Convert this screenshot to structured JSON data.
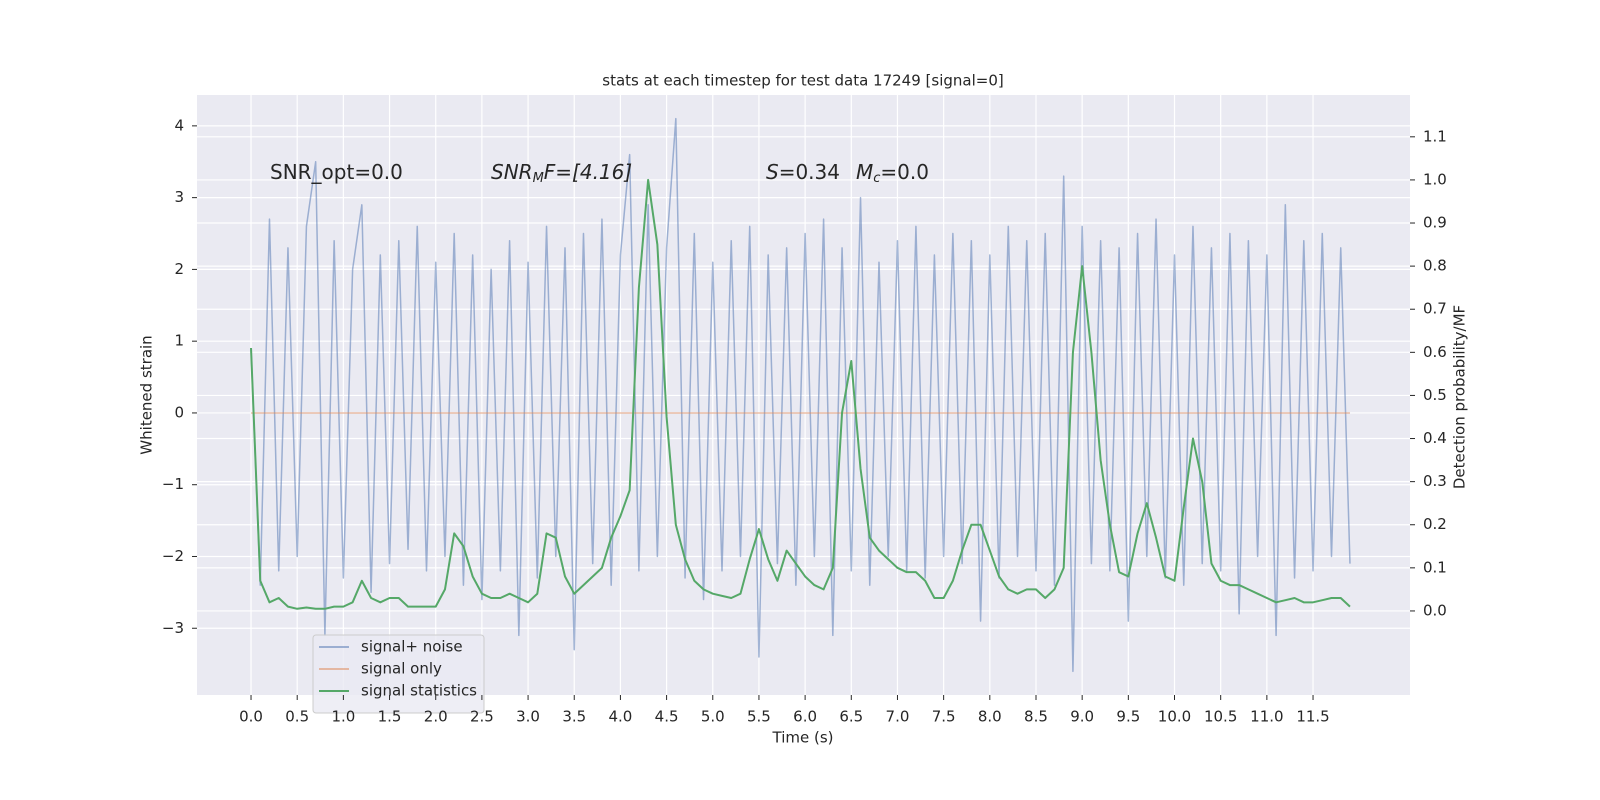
{
  "chart_data": {
    "type": "line",
    "title": "stats at each timestep for test data 17249 [signal=0]",
    "xlabel": "Time (s)",
    "ylabel": "Whitened strain",
    "y2label": "Detection probability/MF",
    "annotations": [
      {
        "parts": [
          "SNR_opt=0.0"
        ]
      },
      {
        "parts": [
          "SNR",
          "M",
          "F=[4.16]"
        ]
      },
      {
        "parts": [
          "S",
          "=0.34",
          "M",
          "c",
          "=0.0"
        ]
      }
    ],
    "xlim": [
      -0.585,
      12.55
    ],
    "ylim": [
      -3.93,
      4.43
    ],
    "y2lim": [
      -0.195,
      1.197
    ],
    "xticks": [
      {
        "value": 0,
        "label": "0.0"
      },
      {
        "value": 0.5,
        "label": "0.5"
      },
      {
        "value": 1,
        "label": "1.0"
      },
      {
        "value": 1.5,
        "label": "1.5"
      },
      {
        "value": 2,
        "label": "2.0"
      },
      {
        "value": 2.5,
        "label": "2.5"
      },
      {
        "value": 3,
        "label": "3.0"
      },
      {
        "value": 3.5,
        "label": "3.5"
      },
      {
        "value": 4,
        "label": "4.0"
      },
      {
        "value": 4.5,
        "label": "4.5"
      },
      {
        "value": 5,
        "label": "5.0"
      },
      {
        "value": 5.5,
        "label": "5.5"
      },
      {
        "value": 6,
        "label": "6.0"
      },
      {
        "value": 6.5,
        "label": "6.5"
      },
      {
        "value": 7,
        "label": "7.0"
      },
      {
        "value": 7.5,
        "label": "7.5"
      },
      {
        "value": 8,
        "label": "8.0"
      },
      {
        "value": 8.5,
        "label": "8.5"
      },
      {
        "value": 9,
        "label": "9.0"
      },
      {
        "value": 9.5,
        "label": "9.5"
      },
      {
        "value": 10,
        "label": "10.0"
      },
      {
        "value": 10.5,
        "label": "10.5"
      },
      {
        "value": 11,
        "label": "11.0"
      },
      {
        "value": 11.5,
        "label": "11.5"
      }
    ],
    "yticks": [
      {
        "value": -3,
        "label": "−3"
      },
      {
        "value": -2,
        "label": "−2"
      },
      {
        "value": -1,
        "label": "−1"
      },
      0,
      1,
      2,
      3,
      4
    ],
    "y2ticks": [
      {
        "value": 0,
        "label": "0.0"
      },
      {
        "value": 0.1,
        "label": "0.1"
      },
      {
        "value": 0.2,
        "label": "0.2"
      },
      {
        "value": 0.3,
        "label": "0.3"
      },
      {
        "value": 0.4,
        "label": "0.4"
      },
      {
        "value": 0.5,
        "label": "0.5"
      },
      {
        "value": 0.6,
        "label": "0.6"
      },
      {
        "value": 0.7,
        "label": "0.7"
      },
      {
        "value": 0.8,
        "label": "0.8"
      },
      {
        "value": 0.9,
        "label": "0.9"
      },
      {
        "value": 1,
        "label": "1.0"
      },
      {
        "value": 1.1,
        "label": "1.1"
      }
    ],
    "grid": true,
    "legend": "lower left",
    "x": [
      0,
      0.1,
      0.2,
      0.3,
      0.4,
      0.5,
      0.6,
      0.7,
      0.8,
      0.9,
      1,
      1.1,
      1.2,
      1.3,
      1.4,
      1.5,
      1.6,
      1.7,
      1.8,
      1.9,
      2,
      2.1,
      2.2,
      2.3,
      2.4,
      2.5,
      2.6,
      2.7,
      2.8,
      2.9,
      3,
      3.1,
      3.2,
      3.3,
      3.4,
      3.5,
      3.6,
      3.7,
      3.8,
      3.9,
      4,
      4.1,
      4.2,
      4.3,
      4.4,
      4.5,
      4.6,
      4.7,
      4.8,
      4.9,
      5,
      5.1,
      5.2,
      5.3,
      5.4,
      5.5,
      5.6,
      5.7,
      5.8,
      5.9,
      6,
      6.1,
      6.2,
      6.3,
      6.4,
      6.5,
      6.6,
      6.7,
      6.8,
      6.9,
      7,
      7.1,
      7.2,
      7.3,
      7.4,
      7.5,
      7.6,
      7.7,
      7.8,
      7.9,
      8,
      8.1,
      8.2,
      8.3,
      8.4,
      8.5,
      8.6,
      8.7,
      8.8,
      8.9,
      9,
      9.1,
      9.2,
      9.3,
      9.4,
      9.5,
      9.6,
      9.7,
      9.8,
      9.9,
      10,
      10.1,
      10.2,
      10.3,
      10.4,
      10.5,
      10.6,
      10.7,
      10.8,
      10.9,
      11,
      11.1,
      11.2,
      11.3,
      11.4,
      11.5,
      11.6,
      11.7,
      11.8,
      11.9
    ],
    "series": [
      {
        "name": "signal+ noise",
        "color": "#4c72b0",
        "opacity": 0.5,
        "values": [
          0.9,
          -2.4,
          2.7,
          -2.2,
          2.3,
          -2.0,
          2.6,
          3.5,
          -3.1,
          2.4,
          -2.3,
          2.0,
          2.9,
          -2.5,
          2.2,
          -2.1,
          2.4,
          -1.9,
          2.6,
          -2.2,
          2.1,
          -2.0,
          2.5,
          -2.4,
          2.2,
          -2.6,
          2.0,
          -2.2,
          2.4,
          -3.1,
          2.1,
          -2.3,
          2.6,
          -2.0,
          2.3,
          -3.3,
          2.5,
          -2.1,
          2.7,
          -2.4,
          2.2,
          3.6,
          -2.2,
          2.9,
          -2.0,
          2.3,
          4.1,
          -2.3,
          2.5,
          -2.6,
          2.1,
          -2.2,
          2.4,
          -2.0,
          2.6,
          -3.4,
          2.2,
          -2.1,
          2.3,
          -2.4,
          2.5,
          -2.0,
          2.7,
          -3.1,
          2.3,
          -2.2,
          3.0,
          -2.4,
          2.1,
          -2.0,
          2.4,
          -2.2,
          2.6,
          -2.3,
          2.2,
          -2.0,
          2.5,
          -2.1,
          2.4,
          -2.9,
          2.2,
          -2.3,
          2.6,
          -2.0,
          2.4,
          -2.2,
          2.5,
          -2.4,
          3.3,
          -3.6,
          2.6,
          -2.1,
          2.4,
          -2.2,
          2.3,
          -2.9,
          2.5,
          -2.0,
          2.7,
          -2.3,
          2.2,
          -2.4,
          2.6,
          -2.1,
          2.3,
          -2.2,
          2.5,
          -2.8,
          2.4,
          -2.0,
          2.2,
          -3.1,
          2.9,
          -2.3,
          2.4,
          -2.2,
          2.5,
          -2.0,
          2.3,
          -2.1
        ]
      },
      {
        "name": "signal only",
        "color": "#dd8452",
        "opacity": 0.5,
        "x": [
          0,
          11.9
        ],
        "values": [
          0,
          0
        ]
      },
      {
        "name": "signal statistics",
        "color": "#55a868",
        "opacity": 1,
        "axis": "y2",
        "values": [
          0.61,
          0.07,
          0.02,
          0.03,
          0.01,
          0.005,
          0.008,
          0.005,
          0.005,
          0.01,
          0.01,
          0.02,
          0.07,
          0.03,
          0.02,
          0.03,
          0.03,
          0.01,
          0.01,
          0.01,
          0.01,
          0.05,
          0.18,
          0.15,
          0.08,
          0.04,
          0.03,
          0.03,
          0.04,
          0.03,
          0.02,
          0.04,
          0.18,
          0.17,
          0.08,
          0.04,
          0.06,
          0.08,
          0.1,
          0.17,
          0.22,
          0.28,
          0.75,
          1.0,
          0.85,
          0.45,
          0.2,
          0.12,
          0.07,
          0.05,
          0.04,
          0.035,
          0.03,
          0.04,
          0.12,
          0.19,
          0.12,
          0.07,
          0.14,
          0.11,
          0.08,
          0.06,
          0.05,
          0.1,
          0.46,
          0.58,
          0.33,
          0.17,
          0.14,
          0.12,
          0.1,
          0.09,
          0.09,
          0.07,
          0.03,
          0.03,
          0.07,
          0.14,
          0.2,
          0.2,
          0.14,
          0.08,
          0.05,
          0.04,
          0.05,
          0.05,
          0.03,
          0.05,
          0.1,
          0.6,
          0.8,
          0.6,
          0.35,
          0.2,
          0.09,
          0.08,
          0.18,
          0.25,
          0.17,
          0.08,
          0.07,
          0.24,
          0.4,
          0.3,
          0.11,
          0.07,
          0.06,
          0.06,
          0.05,
          0.04,
          0.03,
          0.02,
          0.025,
          0.03,
          0.02,
          0.02,
          0.025,
          0.03,
          0.03,
          0.01
        ]
      }
    ]
  }
}
